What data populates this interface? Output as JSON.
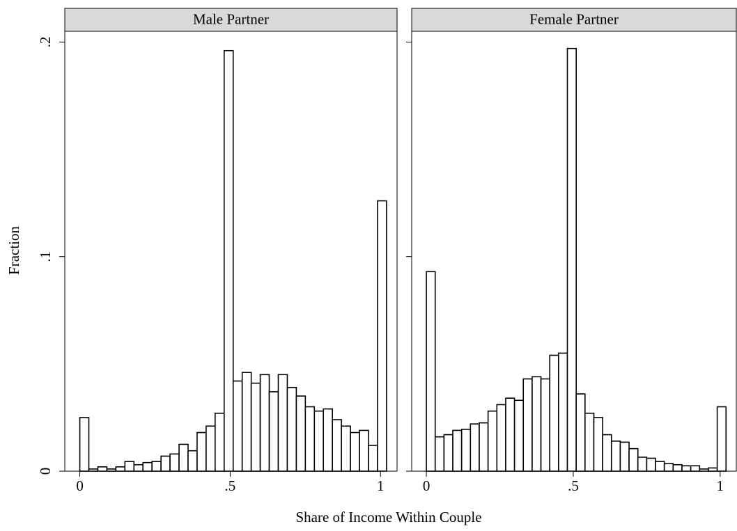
{
  "chart_data": {
    "type": "histogram",
    "xlabel": "Share of Income Within Couple",
    "ylabel": "Fraction",
    "bins": [
      0,
      0.03,
      0.06,
      0.09,
      0.12,
      0.15,
      0.18,
      0.21,
      0.24,
      0.27,
      0.3,
      0.33,
      0.36,
      0.39,
      0.42,
      0.45,
      0.48,
      0.51,
      0.54,
      0.57,
      0.6,
      0.63,
      0.66,
      0.69,
      0.72,
      0.75,
      0.78,
      0.81,
      0.84,
      0.87,
      0.9,
      0.93,
      0.96,
      0.99,
      1.02
    ],
    "xlim": [
      -0.05,
      1.055
    ],
    "xticks": [
      0,
      {
        "value": 0.5,
        "label": ".5"
      },
      1
    ],
    "ylim": [
      0,
      0.205
    ],
    "yticks": [
      0,
      {
        "value": 0.1,
        "label": ".1"
      },
      {
        "value": 0.2,
        "label": ".2"
      }
    ],
    "color": "#ffffff",
    "panels": [
      {
        "title": "Male Partner",
        "values": [
          0.025,
          0.001,
          0.002,
          0.001,
          0.002,
          0.0045,
          0.003,
          0.004,
          0.0045,
          0.007,
          0.008,
          0.0125,
          0.0095,
          0.018,
          0.021,
          0.027,
          0.196,
          0.042,
          0.046,
          0.041,
          0.045,
          0.037,
          0.045,
          0.039,
          0.035,
          0.03,
          0.028,
          0.029,
          0.024,
          0.021,
          0.018,
          0.019,
          0.012,
          0.126
        ]
      },
      {
        "title": "Female Partner",
        "values": [
          0.093,
          0.016,
          0.017,
          0.019,
          0.0195,
          0.022,
          0.0225,
          0.028,
          0.031,
          0.034,
          0.033,
          0.043,
          0.044,
          0.043,
          0.054,
          0.055,
          0.197,
          0.036,
          0.027,
          0.025,
          0.017,
          0.014,
          0.0135,
          0.0105,
          0.0065,
          0.006,
          0.0045,
          0.0035,
          0.003,
          0.0025,
          0.0025,
          0.001,
          0.0015,
          0.03
        ]
      }
    ]
  }
}
